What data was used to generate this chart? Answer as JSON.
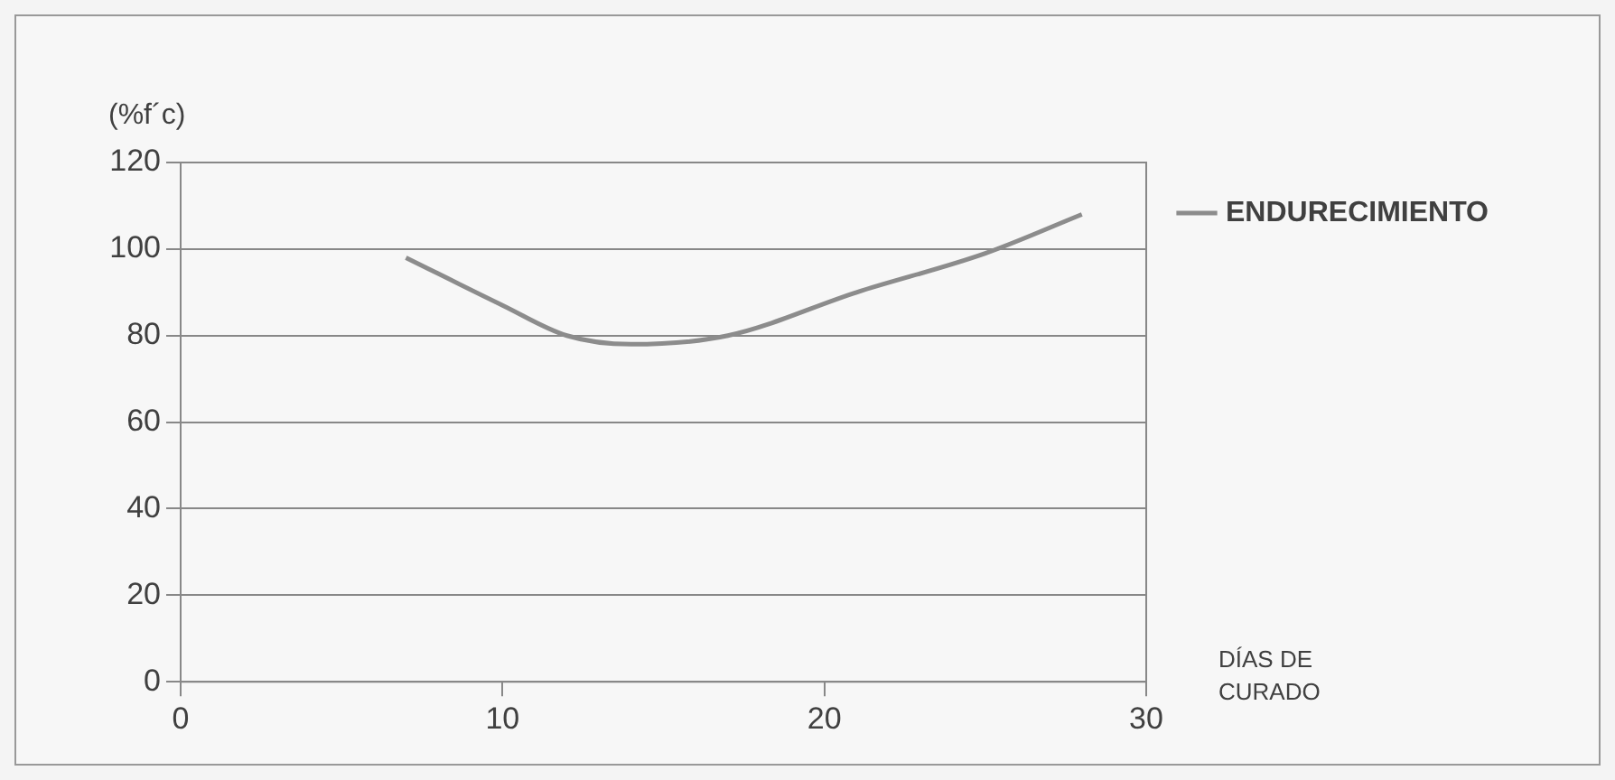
{
  "chart_data": {
    "type": "line",
    "ylabel": "(%f´c)",
    "xlabel": "DÍAS DE CURADO",
    "x": [
      7,
      10,
      12,
      14,
      17,
      21,
      25,
      28
    ],
    "series": [
      {
        "name": "ENDURECIMIENTO",
        "color": "#8c8c8c",
        "values": [
          98,
          87,
          80,
          78,
          80,
          90,
          99,
          108
        ]
      }
    ],
    "xlim": [
      0,
      30
    ],
    "xticks": [
      0,
      10,
      20,
      30
    ],
    "ylim": [
      0,
      120
    ],
    "yticks": [
      0,
      20,
      40,
      60,
      80,
      100,
      120
    ],
    "grid": "y",
    "legend": "right",
    "marker": "none",
    "line_style": "solid"
  }
}
